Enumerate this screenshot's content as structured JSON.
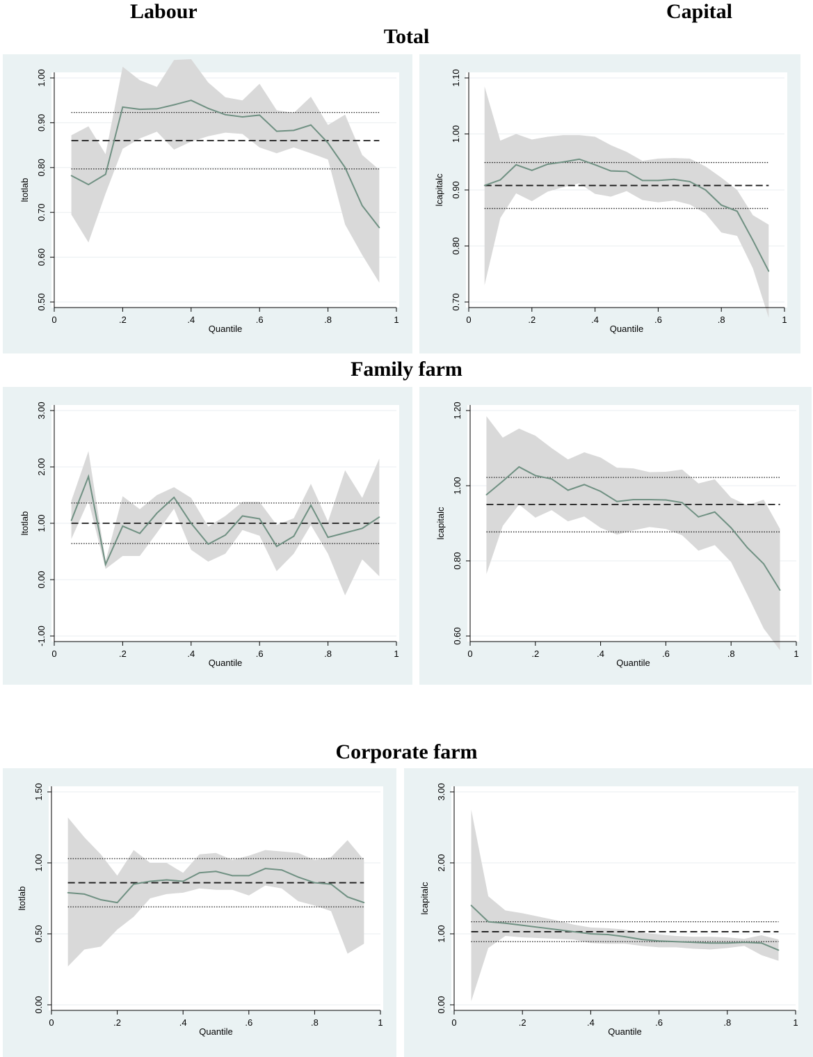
{
  "headers": {
    "labour": "Labour",
    "capital": "Capital",
    "total": "Total",
    "family": "Family farm",
    "corporate": "Corporate farm"
  },
  "colors": {
    "panel_bg": "#eaf2f3",
    "plot_bg": "#ffffff",
    "band": "#d9d9d9",
    "line": "#6f9082",
    "ref": "#1a1a1a",
    "grid": "#e9eef0"
  },
  "chart_data": [
    {
      "type": "line",
      "group": "Total",
      "column": "Labour",
      "xlabel": "Quantile",
      "ylabel": "ltotlab",
      "xlim": [
        0,
        1
      ],
      "ylim": [
        0.5,
        1.0
      ],
      "x_ticks": [
        "0",
        ".2",
        ".4",
        ".6",
        ".8",
        "1"
      ],
      "y_ticks": [
        "0.50",
        "0.60",
        "0.70",
        "0.80",
        "0.90",
        "1.00"
      ],
      "x": [
        0.05,
        0.1,
        0.15,
        0.2,
        0.25,
        0.3,
        0.35,
        0.4,
        0.45,
        0.5,
        0.55,
        0.6,
        0.65,
        0.7,
        0.75,
        0.8,
        0.85,
        0.9,
        0.95
      ],
      "estimate": [
        0.782,
        0.762,
        0.785,
        0.935,
        0.93,
        0.931,
        0.94,
        0.95,
        0.932,
        0.918,
        0.913,
        0.917,
        0.881,
        0.883,
        0.895,
        0.855,
        0.8,
        0.715,
        0.666
      ],
      "ci_upper": [
        0.872,
        0.892,
        0.83,
        1.025,
        0.995,
        0.98,
        1.04,
        1.042,
        0.99,
        0.957,
        0.95,
        0.987,
        0.928,
        0.922,
        0.958,
        0.895,
        0.918,
        0.828,
        0.795
      ],
      "ci_lower": [
        0.695,
        0.633,
        0.742,
        0.842,
        0.865,
        0.88,
        0.84,
        0.858,
        0.87,
        0.878,
        0.875,
        0.845,
        0.832,
        0.845,
        0.832,
        0.818,
        0.673,
        0.605,
        0.543
      ],
      "ols": 0.86,
      "ols_ci": [
        0.797,
        0.923
      ]
    },
    {
      "type": "line",
      "group": "Total",
      "column": "Capital",
      "xlabel": "Quantile",
      "ylabel": "lcapitalc",
      "xlim": [
        0,
        1
      ],
      "ylim": [
        0.7,
        1.1
      ],
      "x_ticks": [
        "0",
        ".2",
        ".4",
        ".6",
        ".8",
        "1"
      ],
      "y_ticks": [
        "0.70",
        "0.80",
        "0.90",
        "1.00",
        "1.10"
      ],
      "x": [
        0.05,
        0.1,
        0.15,
        0.2,
        0.25,
        0.3,
        0.35,
        0.4,
        0.45,
        0.5,
        0.55,
        0.6,
        0.65,
        0.7,
        0.75,
        0.8,
        0.85,
        0.9,
        0.95
      ],
      "estimate": [
        0.908,
        0.918,
        0.945,
        0.935,
        0.946,
        0.95,
        0.955,
        0.945,
        0.934,
        0.933,
        0.917,
        0.917,
        0.919,
        0.915,
        0.9,
        0.873,
        0.862,
        0.81,
        0.755
      ],
      "ci_upper": [
        1.085,
        0.988,
        1.0,
        0.99,
        0.995,
        0.998,
        0.998,
        0.995,
        0.98,
        0.968,
        0.952,
        0.956,
        0.957,
        0.956,
        0.942,
        0.922,
        0.9,
        0.855,
        0.838
      ],
      "ci_lower": [
        0.73,
        0.85,
        0.894,
        0.88,
        0.897,
        0.905,
        0.912,
        0.893,
        0.888,
        0.898,
        0.882,
        0.878,
        0.881,
        0.874,
        0.858,
        0.824,
        0.818,
        0.76,
        0.672
      ],
      "ols": 0.908,
      "ols_ci": [
        0.867,
        0.949
      ]
    },
    {
      "type": "line",
      "group": "Family farm",
      "column": "Labour",
      "xlabel": "Quantile",
      "ylabel": "ltotlab",
      "xlim": [
        0,
        1
      ],
      "ylim": [
        -1.0,
        3.0
      ],
      "x_ticks": [
        "0",
        ".2",
        ".4",
        ".6",
        ".8",
        "1"
      ],
      "y_ticks": [
        "-1.00",
        "0.00",
        "1.00",
        "2.00",
        "3.00"
      ],
      "x": [
        0.05,
        0.1,
        0.15,
        0.2,
        0.25,
        0.3,
        0.35,
        0.4,
        0.45,
        0.5,
        0.55,
        0.6,
        0.65,
        0.7,
        0.75,
        0.8,
        0.85,
        0.9,
        0.95
      ],
      "estimate": [
        1.05,
        1.83,
        0.27,
        0.95,
        0.82,
        1.18,
        1.46,
        1.0,
        0.63,
        0.79,
        1.13,
        1.08,
        0.59,
        0.77,
        1.32,
        0.75,
        0.83,
        0.91,
        1.11
      ],
      "ci_upper": [
        1.4,
        2.28,
        0.33,
        1.48,
        1.25,
        1.5,
        1.64,
        1.45,
        0.94,
        1.13,
        1.38,
        1.38,
        0.97,
        1.09,
        1.7,
        1.03,
        1.94,
        1.45,
        2.15
      ],
      "ci_lower": [
        0.72,
        1.4,
        0.19,
        0.42,
        0.42,
        0.83,
        1.26,
        0.53,
        0.32,
        0.46,
        0.88,
        0.78,
        0.15,
        0.46,
        0.97,
        0.46,
        -0.28,
        0.36,
        0.06
      ],
      "ols": 1.0,
      "ols_ci": [
        0.64,
        1.36
      ]
    },
    {
      "type": "line",
      "group": "Family farm",
      "column": "Capital",
      "xlabel": "Quantile",
      "ylabel": "lcapitalc",
      "xlim": [
        0,
        1
      ],
      "ylim": [
        0.6,
        1.2
      ],
      "x_ticks": [
        "0",
        ".2",
        ".4",
        ".6",
        ".8",
        "1"
      ],
      "y_ticks": [
        "0.60",
        "0.80",
        "1.00",
        "1.20"
      ],
      "x": [
        0.05,
        0.1,
        0.15,
        0.2,
        0.25,
        0.3,
        0.35,
        0.4,
        0.45,
        0.5,
        0.55,
        0.6,
        0.65,
        0.7,
        0.75,
        0.8,
        0.85,
        0.9,
        0.95
      ],
      "estimate": [
        0.976,
        1.012,
        1.05,
        1.027,
        1.018,
        0.988,
        1.003,
        0.985,
        0.958,
        0.963,
        0.963,
        0.962,
        0.955,
        0.917,
        0.93,
        0.888,
        0.835,
        0.792,
        0.722
      ],
      "ci_upper": [
        1.185,
        1.128,
        1.152,
        1.133,
        1.1,
        1.07,
        1.089,
        1.075,
        1.048,
        1.046,
        1.036,
        1.037,
        1.043,
        1.006,
        1.017,
        0.968,
        0.948,
        0.963,
        0.885
      ],
      "ci_lower": [
        0.765,
        0.893,
        0.95,
        0.915,
        0.935,
        0.905,
        0.918,
        0.888,
        0.87,
        0.881,
        0.89,
        0.885,
        0.868,
        0.827,
        0.842,
        0.797,
        0.71,
        0.62,
        0.562
      ],
      "ols": 0.95,
      "ols_ci": [
        0.877,
        1.022
      ]
    },
    {
      "type": "line",
      "group": "Corporate farm",
      "column": "Labour",
      "xlabel": "Quantile",
      "ylabel": "ltotlab",
      "xlim": [
        0,
        1
      ],
      "ylim": [
        0.0,
        1.5
      ],
      "x_ticks": [
        "0",
        ".2",
        ".4",
        ".6",
        ".8",
        "1"
      ],
      "y_ticks": [
        "0.00",
        "0.50",
        "1.00",
        "1.50"
      ],
      "x": [
        0.05,
        0.1,
        0.15,
        0.2,
        0.25,
        0.3,
        0.35,
        0.4,
        0.45,
        0.5,
        0.55,
        0.6,
        0.65,
        0.7,
        0.75,
        0.8,
        0.85,
        0.9,
        0.95
      ],
      "estimate": [
        0.79,
        0.78,
        0.74,
        0.72,
        0.85,
        0.87,
        0.88,
        0.87,
        0.93,
        0.94,
        0.91,
        0.91,
        0.96,
        0.95,
        0.9,
        0.86,
        0.85,
        0.76,
        0.72
      ],
      "ci_upper": [
        1.32,
        1.18,
        1.06,
        0.91,
        1.09,
        1.0,
        1.0,
        0.93,
        1.06,
        1.07,
        1.02,
        1.05,
        1.09,
        1.08,
        1.07,
        1.02,
        1.04,
        1.16,
        1.02
      ],
      "ci_lower": [
        0.27,
        0.39,
        0.41,
        0.53,
        0.62,
        0.75,
        0.78,
        0.79,
        0.82,
        0.81,
        0.81,
        0.77,
        0.84,
        0.82,
        0.73,
        0.7,
        0.66,
        0.36,
        0.43
      ],
      "ols": 0.86,
      "ols_ci": [
        0.69,
        1.03
      ]
    },
    {
      "type": "line",
      "group": "Corporate farm",
      "column": "Capital",
      "xlabel": "Quantile",
      "ylabel": "lcapitalc",
      "xlim": [
        0,
        1
      ],
      "ylim": [
        0.0,
        3.0
      ],
      "x_ticks": [
        "0",
        ".2",
        ".4",
        ".6",
        ".8",
        "1"
      ],
      "y_ticks": [
        "0.00",
        "1.00",
        "2.00",
        "3.00"
      ],
      "x": [
        0.05,
        0.1,
        0.15,
        0.2,
        0.25,
        0.3,
        0.35,
        0.4,
        0.45,
        0.5,
        0.55,
        0.6,
        0.65,
        0.7,
        0.75,
        0.8,
        0.85,
        0.9,
        0.95
      ],
      "estimate": [
        1.4,
        1.17,
        1.15,
        1.12,
        1.09,
        1.06,
        1.03,
        1.0,
        0.99,
        0.96,
        0.92,
        0.9,
        0.89,
        0.88,
        0.87,
        0.87,
        0.88,
        0.87,
        0.77
      ],
      "ci_upper": [
        2.75,
        1.53,
        1.33,
        1.29,
        1.24,
        1.19,
        1.13,
        1.09,
        1.08,
        1.06,
        1.02,
        0.99,
        0.97,
        0.96,
        0.96,
        0.95,
        0.93,
        0.98,
        0.92
      ],
      "ci_lower": [
        0.05,
        0.8,
        0.97,
        0.95,
        0.94,
        0.93,
        0.92,
        0.87,
        0.86,
        0.86,
        0.83,
        0.81,
        0.81,
        0.79,
        0.78,
        0.8,
        0.83,
        0.7,
        0.62
      ],
      "ols": 1.03,
      "ols_ci": [
        0.89,
        1.17
      ]
    }
  ]
}
